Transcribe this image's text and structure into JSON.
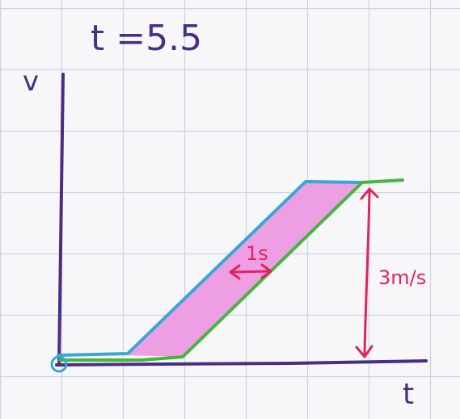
{
  "diagram": {
    "title": "t =5.5",
    "axis_y_label": "v",
    "axis_x_label": "t",
    "arrow_label": "1s",
    "height_label": "3m/s",
    "colors": {
      "grid": "#c9d3e6",
      "axis": "#4b2d84",
      "fill": "#ee9fe3",
      "blue_edge": "#3aa6d6",
      "green_edge": "#46b53d",
      "red": "#e0245e",
      "title": "#4a2e85"
    }
  }
}
